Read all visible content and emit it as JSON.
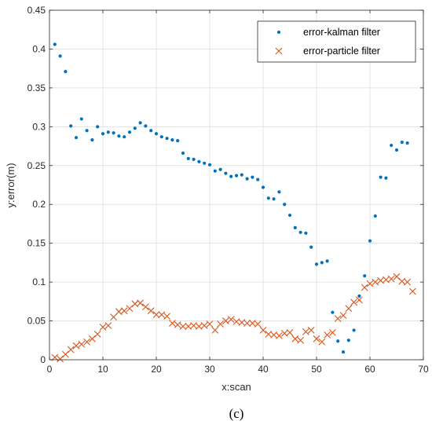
{
  "caption": "(c)",
  "colors": {
    "kalman": "#0072BD",
    "particle": "#D95319",
    "grid": "#dedede",
    "axis": "#262626"
  },
  "chart_data": {
    "type": "scatter",
    "title": "",
    "xlabel": "x:scan",
    "ylabel": "y:error(m)",
    "xlim": [
      0,
      70
    ],
    "ylim": [
      0,
      0.45
    ],
    "xticks": [
      "0",
      "10",
      "20",
      "30",
      "40",
      "50",
      "60",
      "70"
    ],
    "yticks": [
      "0",
      "0.05",
      "0.1",
      "0.15",
      "0.2",
      "0.25",
      "0.3",
      "0.35",
      "0.4",
      "0.45"
    ],
    "grid": true,
    "legend_position": "top-right",
    "series": [
      {
        "name": "error-kalman filter",
        "marker": "dot",
        "color": "#0072BD",
        "x": [
          1,
          2,
          3,
          4,
          5,
          6,
          7,
          8,
          9,
          10,
          11,
          12,
          13,
          14,
          15,
          16,
          17,
          18,
          19,
          20,
          21,
          22,
          23,
          24,
          25,
          26,
          27,
          28,
          29,
          30,
          31,
          32,
          33,
          34,
          35,
          36,
          37,
          38,
          39,
          40,
          41,
          42,
          43,
          44,
          45,
          46,
          47,
          48,
          49,
          50,
          51,
          52,
          53,
          54,
          55,
          56,
          57,
          58,
          59,
          60,
          61,
          62,
          63,
          64,
          65,
          66,
          67
        ],
        "y": [
          0.406,
          0.391,
          0.371,
          0.301,
          0.286,
          0.31,
          0.295,
          0.283,
          0.3,
          0.291,
          0.293,
          0.292,
          0.288,
          0.287,
          0.293,
          0.298,
          0.305,
          0.301,
          0.295,
          0.291,
          0.287,
          0.285,
          0.283,
          0.282,
          0.266,
          0.259,
          0.258,
          0.255,
          0.253,
          0.251,
          0.243,
          0.245,
          0.24,
          0.236,
          0.237,
          0.238,
          0.233,
          0.235,
          0.232,
          0.222,
          0.208,
          0.207,
          0.216,
          0.2,
          0.186,
          0.17,
          0.164,
          0.163,
          0.145,
          0.123,
          0.125,
          0.127,
          0.061,
          0.024,
          0.01,
          0.025,
          0.038,
          0.082,
          0.108,
          0.153,
          0.185,
          0.235,
          0.234,
          0.276,
          0.27,
          0.28,
          0.279
        ]
      },
      {
        "name": "error-particle filter",
        "marker": "x",
        "color": "#D95319",
        "x": [
          1,
          2,
          3,
          4,
          5,
          6,
          7,
          8,
          9,
          10,
          11,
          12,
          13,
          14,
          15,
          16,
          17,
          18,
          19,
          20,
          21,
          22,
          23,
          24,
          25,
          26,
          27,
          28,
          29,
          30,
          31,
          32,
          33,
          34,
          35,
          36,
          37,
          38,
          39,
          40,
          41,
          42,
          43,
          44,
          45,
          46,
          47,
          48,
          49,
          50,
          51,
          52,
          53,
          54,
          55,
          56,
          57,
          58,
          59,
          60,
          61,
          62,
          63,
          64,
          65,
          66,
          67,
          68
        ],
        "y": [
          0.003,
          0.001,
          0.007,
          0.013,
          0.018,
          0.02,
          0.023,
          0.027,
          0.033,
          0.042,
          0.044,
          0.055,
          0.062,
          0.063,
          0.066,
          0.072,
          0.073,
          0.068,
          0.063,
          0.058,
          0.058,
          0.056,
          0.047,
          0.045,
          0.043,
          0.043,
          0.044,
          0.043,
          0.044,
          0.046,
          0.038,
          0.046,
          0.05,
          0.052,
          0.049,
          0.048,
          0.047,
          0.047,
          0.046,
          0.038,
          0.033,
          0.032,
          0.031,
          0.034,
          0.035,
          0.027,
          0.025,
          0.036,
          0.038,
          0.027,
          0.023,
          0.032,
          0.035,
          0.053,
          0.057,
          0.066,
          0.074,
          0.077,
          0.093,
          0.098,
          0.1,
          0.102,
          0.103,
          0.104,
          0.107,
          0.101,
          0.1,
          0.088
        ]
      }
    ]
  }
}
